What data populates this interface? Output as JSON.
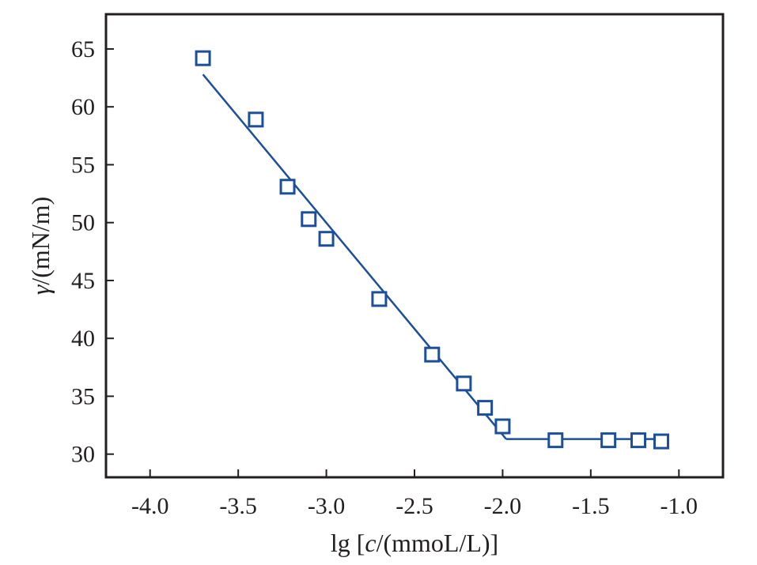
{
  "chart_data": {
    "type": "scatter",
    "title": "",
    "xlabel_parts": [
      "lg [",
      "c",
      "/(mmoL/L)]"
    ],
    "ylabel_parts": [
      "γ",
      "/(mN/m)"
    ],
    "xlim": [
      -4.25,
      -0.75
    ],
    "ylim": [
      28,
      68
    ],
    "xticks": [
      -4.0,
      -3.5,
      -3.0,
      -2.5,
      -2.0,
      -1.5,
      -1.0
    ],
    "xtick_labels": [
      "-4.0",
      "-3.5",
      "-3.0",
      "-2.5",
      "-2.0",
      "-1.5",
      "-1.0"
    ],
    "yticks": [
      30,
      35,
      40,
      45,
      50,
      55,
      60,
      65
    ],
    "ytick_labels": [
      "30",
      "35",
      "40",
      "45",
      "50",
      "55",
      "60",
      "65"
    ],
    "grid": false,
    "marker_color": "#1b4f9c",
    "line_color": "#1b4f9c",
    "axis_color": "#231f20",
    "points": [
      {
        "x": -3.7,
        "y": 64.2
      },
      {
        "x": -3.4,
        "y": 58.9
      },
      {
        "x": -3.22,
        "y": 53.1
      },
      {
        "x": -3.1,
        "y": 50.3
      },
      {
        "x": -3.0,
        "y": 48.6
      },
      {
        "x": -2.7,
        "y": 43.4
      },
      {
        "x": -2.4,
        "y": 38.6
      },
      {
        "x": -2.22,
        "y": 36.1
      },
      {
        "x": -2.1,
        "y": 34.0
      },
      {
        "x": -2.0,
        "y": 32.4
      },
      {
        "x": -1.7,
        "y": 31.2
      },
      {
        "x": -1.4,
        "y": 31.2
      },
      {
        "x": -1.23,
        "y": 31.2
      },
      {
        "x": -1.1,
        "y": 31.1
      }
    ],
    "fit_lines": [
      {
        "x": [
          -3.7,
          -1.98
        ],
        "y": [
          62.8,
          31.3
        ]
      },
      {
        "x": [
          -1.98,
          -1.1
        ],
        "y": [
          31.3,
          31.3
        ]
      }
    ]
  }
}
